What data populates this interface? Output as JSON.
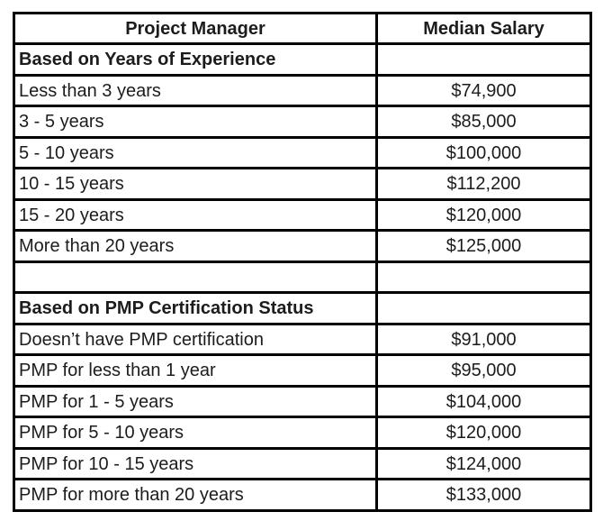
{
  "table": {
    "title_column": "Project Manager",
    "value_column": "Median Salary",
    "border_color": "#000000",
    "text_color": "#1c1c1c",
    "background_color": "#ffffff",
    "rows": [
      {
        "type": "header",
        "label": "Project Manager",
        "value": "Median Salary"
      },
      {
        "type": "section",
        "label": "Based on Years of Experience",
        "value": ""
      },
      {
        "type": "data",
        "label": "Less than 3 years",
        "value": "$74,900"
      },
      {
        "type": "data",
        "label": "3 - 5 years",
        "value": "$85,000"
      },
      {
        "type": "data",
        "label": "5 - 10 years",
        "value": "$100,000"
      },
      {
        "type": "data",
        "label": "10 - 15 years",
        "value": "$112,200"
      },
      {
        "type": "data",
        "label": "15 - 20 years",
        "value": "$120,000"
      },
      {
        "type": "data",
        "label": "More than 20 years",
        "value": "$125,000"
      },
      {
        "type": "empty",
        "label": "",
        "value": ""
      },
      {
        "type": "section",
        "label": "Based on PMP Certification Status",
        "value": ""
      },
      {
        "type": "data",
        "label": "Doesn’t have PMP certification",
        "value": "$91,000"
      },
      {
        "type": "data",
        "label": "PMP for less than 1 year",
        "value": "$95,000"
      },
      {
        "type": "data",
        "label": "PMP for 1 - 5 years",
        "value": "$104,000"
      },
      {
        "type": "data",
        "label": "PMP for 5 - 10 years",
        "value": "$120,000"
      },
      {
        "type": "data",
        "label": "PMP for 10 - 15 years",
        "value": "$124,000"
      },
      {
        "type": "data",
        "label": "PMP for more than 20 years",
        "value": "$133,000"
      }
    ]
  },
  "chart_data": {
    "type": "table",
    "title": "Project Manager Median Salary",
    "columns": [
      "Project Manager",
      "Median Salary"
    ],
    "sections": [
      {
        "title": "Based on Years of Experience",
        "categories": [
          "Less than 3 years",
          "3 - 5 years",
          "5 - 10 years",
          "10 - 15 years",
          "15 - 20 years",
          "More than 20 years"
        ],
        "values": [
          74900,
          85000,
          100000,
          112200,
          120000,
          125000
        ]
      },
      {
        "title": "Based on PMP Certification Status",
        "categories": [
          "Doesn’t have PMP certification",
          "PMP for less than 1 year",
          "PMP for 1 - 5 years",
          "PMP for 5 - 10 years",
          "PMP for 10 - 15 years",
          "PMP for more than 20 years"
        ],
        "values": [
          91000,
          95000,
          104000,
          120000,
          124000,
          133000
        ]
      }
    ]
  }
}
